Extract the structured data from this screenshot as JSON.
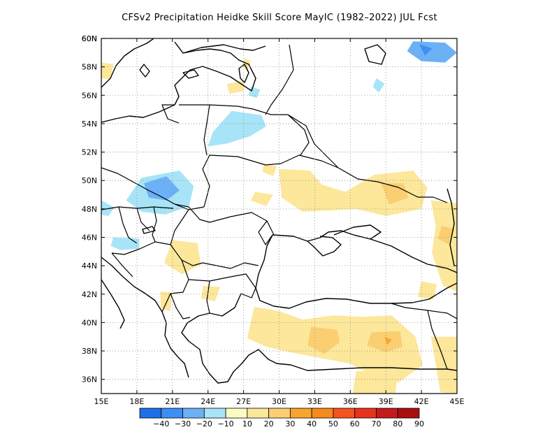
{
  "title": "CFSv2  Precipitation Heidke Skill Score MayIC (1982–2022) JUL Fcst",
  "map": {
    "lon_range": [
      15,
      45
    ],
    "lat_range": [
      35,
      60
    ],
    "lon_ticks": [
      {
        "value": 15,
        "label": "15E"
      },
      {
        "value": 18,
        "label": "18E"
      },
      {
        "value": 21,
        "label": "21E"
      },
      {
        "value": 24,
        "label": "24E"
      },
      {
        "value": 27,
        "label": "27E"
      },
      {
        "value": 30,
        "label": "30E"
      },
      {
        "value": 33,
        "label": "33E"
      },
      {
        "value": 36,
        "label": "36E"
      },
      {
        "value": 39,
        "label": "39E"
      },
      {
        "value": 42,
        "label": "42E"
      },
      {
        "value": 45,
        "label": "45E"
      }
    ],
    "lat_ticks": [
      {
        "value": 36,
        "label": "36N"
      },
      {
        "value": 38,
        "label": "38N"
      },
      {
        "value": 40,
        "label": "40N"
      },
      {
        "value": 42,
        "label": "42N"
      },
      {
        "value": 44,
        "label": "44N"
      },
      {
        "value": 46,
        "label": "46N"
      },
      {
        "value": 48,
        "label": "48N"
      },
      {
        "value": 50,
        "label": "50N"
      },
      {
        "value": 52,
        "label": "52N"
      },
      {
        "value": 54,
        "label": "54N"
      },
      {
        "value": 56,
        "label": "56N"
      },
      {
        "value": 58,
        "label": "58N"
      },
      {
        "value": 60,
        "label": "60N"
      }
    ],
    "gridlines": "dotted",
    "skill_regions": [
      {
        "level": -20,
        "points": [
          [
            44.0,
            59.7
          ],
          [
            41.3,
            59.8
          ],
          [
            40.8,
            59.1
          ],
          [
            42.0,
            58.4
          ],
          [
            44.0,
            58.3
          ],
          [
            45.0,
            59.0
          ]
        ]
      },
      {
        "level": -30,
        "points": [
          [
            41.8,
            59.6
          ],
          [
            42.3,
            58.8
          ],
          [
            42.9,
            59.3
          ]
        ]
      },
      {
        "level": -10,
        "points": [
          [
            26.0,
            54.9
          ],
          [
            28.5,
            54.6
          ],
          [
            28.9,
            53.8
          ],
          [
            27.5,
            53.1
          ],
          [
            25.6,
            52.6
          ],
          [
            24.0,
            52.4
          ],
          [
            24.4,
            53.4
          ]
        ]
      },
      {
        "level": -10,
        "points": [
          [
            27.6,
            56.6
          ],
          [
            28.4,
            56.4
          ],
          [
            28.1,
            55.8
          ],
          [
            27.4,
            56.0
          ]
        ]
      },
      {
        "level": -10,
        "points": [
          [
            38.2,
            57.2
          ],
          [
            38.9,
            56.8
          ],
          [
            38.4,
            56.2
          ],
          [
            37.9,
            56.6
          ]
        ]
      },
      {
        "level": -10,
        "points": [
          [
            15.0,
            48.6
          ],
          [
            16.1,
            48.1
          ],
          [
            15.6,
            47.5
          ],
          [
            15.0,
            47.6
          ]
        ]
      },
      {
        "level": -10,
        "points": [
          [
            18.4,
            50.2
          ],
          [
            21.6,
            50.7
          ],
          [
            22.8,
            49.6
          ],
          [
            22.4,
            48.2
          ],
          [
            20.4,
            47.6
          ],
          [
            18.4,
            47.8
          ],
          [
            17.1,
            48.6
          ]
        ]
      },
      {
        "level": -20,
        "points": [
          [
            18.6,
            49.8
          ],
          [
            20.5,
            50.3
          ],
          [
            21.6,
            49.3
          ],
          [
            20.5,
            48.6
          ],
          [
            19.0,
            48.8
          ]
        ]
      },
      {
        "level": -10,
        "points": [
          [
            16.0,
            46.0
          ],
          [
            18.2,
            45.9
          ],
          [
            18.2,
            45.2
          ],
          [
            16.6,
            45.1
          ],
          [
            15.8,
            45.4
          ]
        ]
      },
      {
        "level": 10,
        "points": [
          [
            30.0,
            50.8
          ],
          [
            32.6,
            50.7
          ],
          [
            33.6,
            49.7
          ],
          [
            35.6,
            49.2
          ],
          [
            38.0,
            50.4
          ],
          [
            41.3,
            50.7
          ],
          [
            42.5,
            49.5
          ],
          [
            42.0,
            48.0
          ],
          [
            39.0,
            47.5
          ],
          [
            36.5,
            48.0
          ],
          [
            34.5,
            47.9
          ],
          [
            32.0,
            47.8
          ],
          [
            30.2,
            48.8
          ]
        ]
      },
      {
        "level": 10,
        "points": [
          [
            28.0,
            49.2
          ],
          [
            29.5,
            49.0
          ],
          [
            28.9,
            48.2
          ],
          [
            27.6,
            48.6
          ]
        ]
      },
      {
        "level": 20,
        "points": [
          [
            38.6,
            49.8
          ],
          [
            40.5,
            49.8
          ],
          [
            40.9,
            48.8
          ],
          [
            39.3,
            48.3
          ]
        ]
      },
      {
        "level": 10,
        "points": [
          [
            28.7,
            51.2
          ],
          [
            29.8,
            51.0
          ],
          [
            29.5,
            50.3
          ],
          [
            28.6,
            50.6
          ]
        ]
      },
      {
        "level": 10,
        "points": [
          [
            42.8,
            48.6
          ],
          [
            45.0,
            48.4
          ],
          [
            45.0,
            42.2
          ],
          [
            43.8,
            42.6
          ],
          [
            42.9,
            44.9
          ],
          [
            43.2,
            46.8
          ]
        ]
      },
      {
        "level": 20,
        "points": [
          [
            43.7,
            46.8
          ],
          [
            44.8,
            46.6
          ],
          [
            44.3,
            45.5
          ],
          [
            43.4,
            45.9
          ]
        ]
      },
      {
        "level": 10,
        "points": [
          [
            25.6,
            56.8
          ],
          [
            27.0,
            57.0
          ],
          [
            27.0,
            56.3
          ],
          [
            25.8,
            56.1
          ]
        ]
      },
      {
        "level": 10,
        "points": [
          [
            15.0,
            58.3
          ],
          [
            16.0,
            58.2
          ],
          [
            15.8,
            57.1
          ],
          [
            15.0,
            57.2
          ]
        ]
      },
      {
        "level": 10,
        "points": [
          [
            27.1,
            58.6
          ],
          [
            27.6,
            58.4
          ],
          [
            27.3,
            57.7
          ],
          [
            26.9,
            58.1
          ]
        ]
      },
      {
        "level": 10,
        "points": [
          [
            21.0,
            45.8
          ],
          [
            23.1,
            45.6
          ],
          [
            23.4,
            44.1
          ],
          [
            21.8,
            43.4
          ],
          [
            20.3,
            44.2
          ]
        ]
      },
      {
        "level": 10,
        "points": [
          [
            23.6,
            42.6
          ],
          [
            25.0,
            42.5
          ],
          [
            24.6,
            41.5
          ],
          [
            23.4,
            41.7
          ]
        ]
      },
      {
        "level": 10,
        "points": [
          [
            20.0,
            42.2
          ],
          [
            21.0,
            42.1
          ],
          [
            20.8,
            40.8
          ],
          [
            20.0,
            41.0
          ]
        ]
      },
      {
        "level": 10,
        "points": [
          [
            27.9,
            41.1
          ],
          [
            30.0,
            40.8
          ],
          [
            32.0,
            40.2
          ],
          [
            34.5,
            40.5
          ],
          [
            37.0,
            40.4
          ],
          [
            39.5,
            40.5
          ],
          [
            41.5,
            39.0
          ],
          [
            42.1,
            37.0
          ],
          [
            40.1,
            35.8
          ],
          [
            38.0,
            36.2
          ],
          [
            36.0,
            37.1
          ],
          [
            33.5,
            37.5
          ],
          [
            31.0,
            37.9
          ],
          [
            28.9,
            38.3
          ],
          [
            27.3,
            38.9
          ]
        ]
      },
      {
        "level": 20,
        "points": [
          [
            32.7,
            39.7
          ],
          [
            34.9,
            39.5
          ],
          [
            35.1,
            38.6
          ],
          [
            33.8,
            37.8
          ],
          [
            32.4,
            38.4
          ]
        ]
      },
      {
        "level": 20,
        "points": [
          [
            37.8,
            39.3
          ],
          [
            40.2,
            39.4
          ],
          [
            40.4,
            38.3
          ],
          [
            39.0,
            37.9
          ],
          [
            37.4,
            38.4
          ]
        ]
      },
      {
        "level": 30,
        "points": [
          [
            38.9,
            39.0
          ],
          [
            39.5,
            38.8
          ],
          [
            39.1,
            38.4
          ]
        ]
      },
      {
        "level": 10,
        "points": [
          [
            36.5,
            36.6
          ],
          [
            40.0,
            36.4
          ],
          [
            39.8,
            35.0
          ],
          [
            36.2,
            35.0
          ]
        ]
      },
      {
        "level": 10,
        "points": [
          [
            42.8,
            39.0
          ],
          [
            45.0,
            39.0
          ],
          [
            45.0,
            35.0
          ],
          [
            43.6,
            35.1
          ],
          [
            43.2,
            37.1
          ]
        ]
      },
      {
        "level": 10,
        "points": [
          [
            42.0,
            42.9
          ],
          [
            43.3,
            42.7
          ],
          [
            43.0,
            41.6
          ],
          [
            41.7,
            41.8
          ]
        ]
      }
    ]
  },
  "colorbar": {
    "labels": [
      "−40",
      "−30",
      "−20",
      "−10",
      "10",
      "20",
      "30",
      "40",
      "50",
      "60",
      "70",
      "80",
      "90"
    ],
    "levels": [
      -50,
      -40,
      -30,
      -20,
      -10,
      10,
      20,
      30,
      40,
      50,
      60,
      70,
      80,
      90
    ],
    "colors": [
      "#1f6fe6",
      "#3d8ff5",
      "#6cb1f5",
      "#a8e4f7",
      "#fbfbc3",
      "#fce79a",
      "#fbce72",
      "#f7a62d",
      "#f68a1a",
      "#f5531d",
      "#e7321c",
      "#c51b1a",
      "#aa0f10"
    ]
  }
}
